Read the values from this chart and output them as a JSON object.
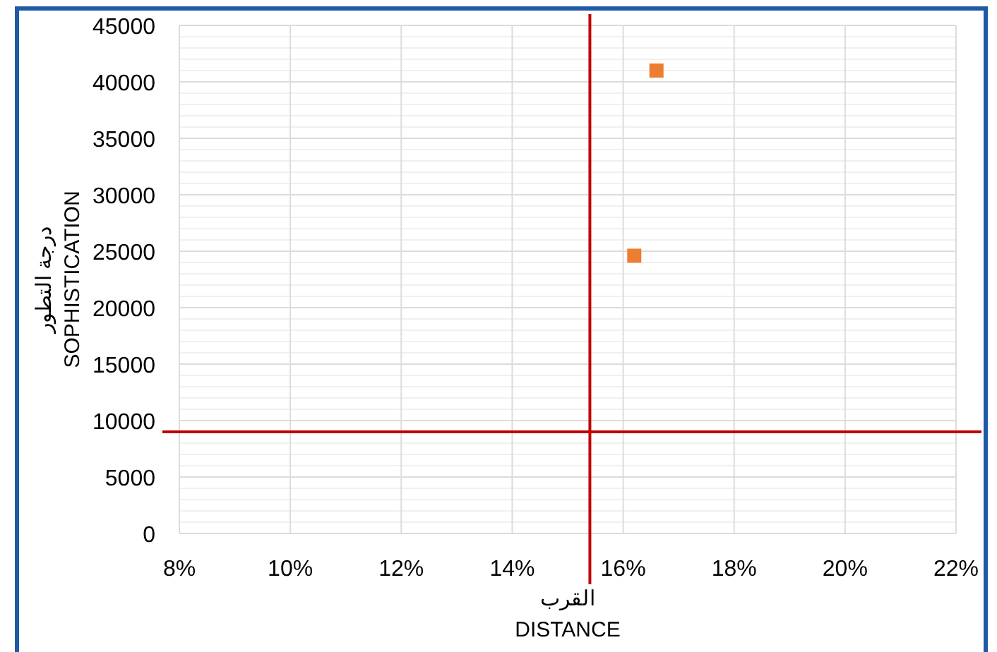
{
  "chart_data": {
    "type": "scatter",
    "xlabel": "القرب\nDISTANCE",
    "ylabel": "درجة التطور\nSOPHISTICATION",
    "series": [
      {
        "color": "#ed7d31",
        "x": [
          16.2,
          16.6
        ],
        "values": [
          24600,
          41000
        ]
      }
    ],
    "marker": "square",
    "grid": true,
    "xlim": [
      8,
      22
    ],
    "xticks": [
      {
        "value": 8,
        "label": "8%"
      },
      {
        "value": 10,
        "label": "10%"
      },
      {
        "value": 12,
        "label": "12%"
      },
      {
        "value": 14,
        "label": "14%"
      },
      {
        "value": 16,
        "label": "16%"
      },
      {
        "value": 18,
        "label": "18%"
      },
      {
        "value": 20,
        "label": "20%"
      },
      {
        "value": 22,
        "label": "22%"
      }
    ],
    "ylim": [
      0,
      45000
    ],
    "yticks": [
      0,
      5000,
      10000,
      15000,
      20000,
      25000,
      30000,
      35000,
      40000,
      45000
    ],
    "ref_lines": [
      {
        "axis": "x",
        "value": 15.4,
        "color": "#c00000"
      },
      {
        "axis": "y",
        "value": 9000,
        "color": "#c00000"
      }
    ]
  }
}
